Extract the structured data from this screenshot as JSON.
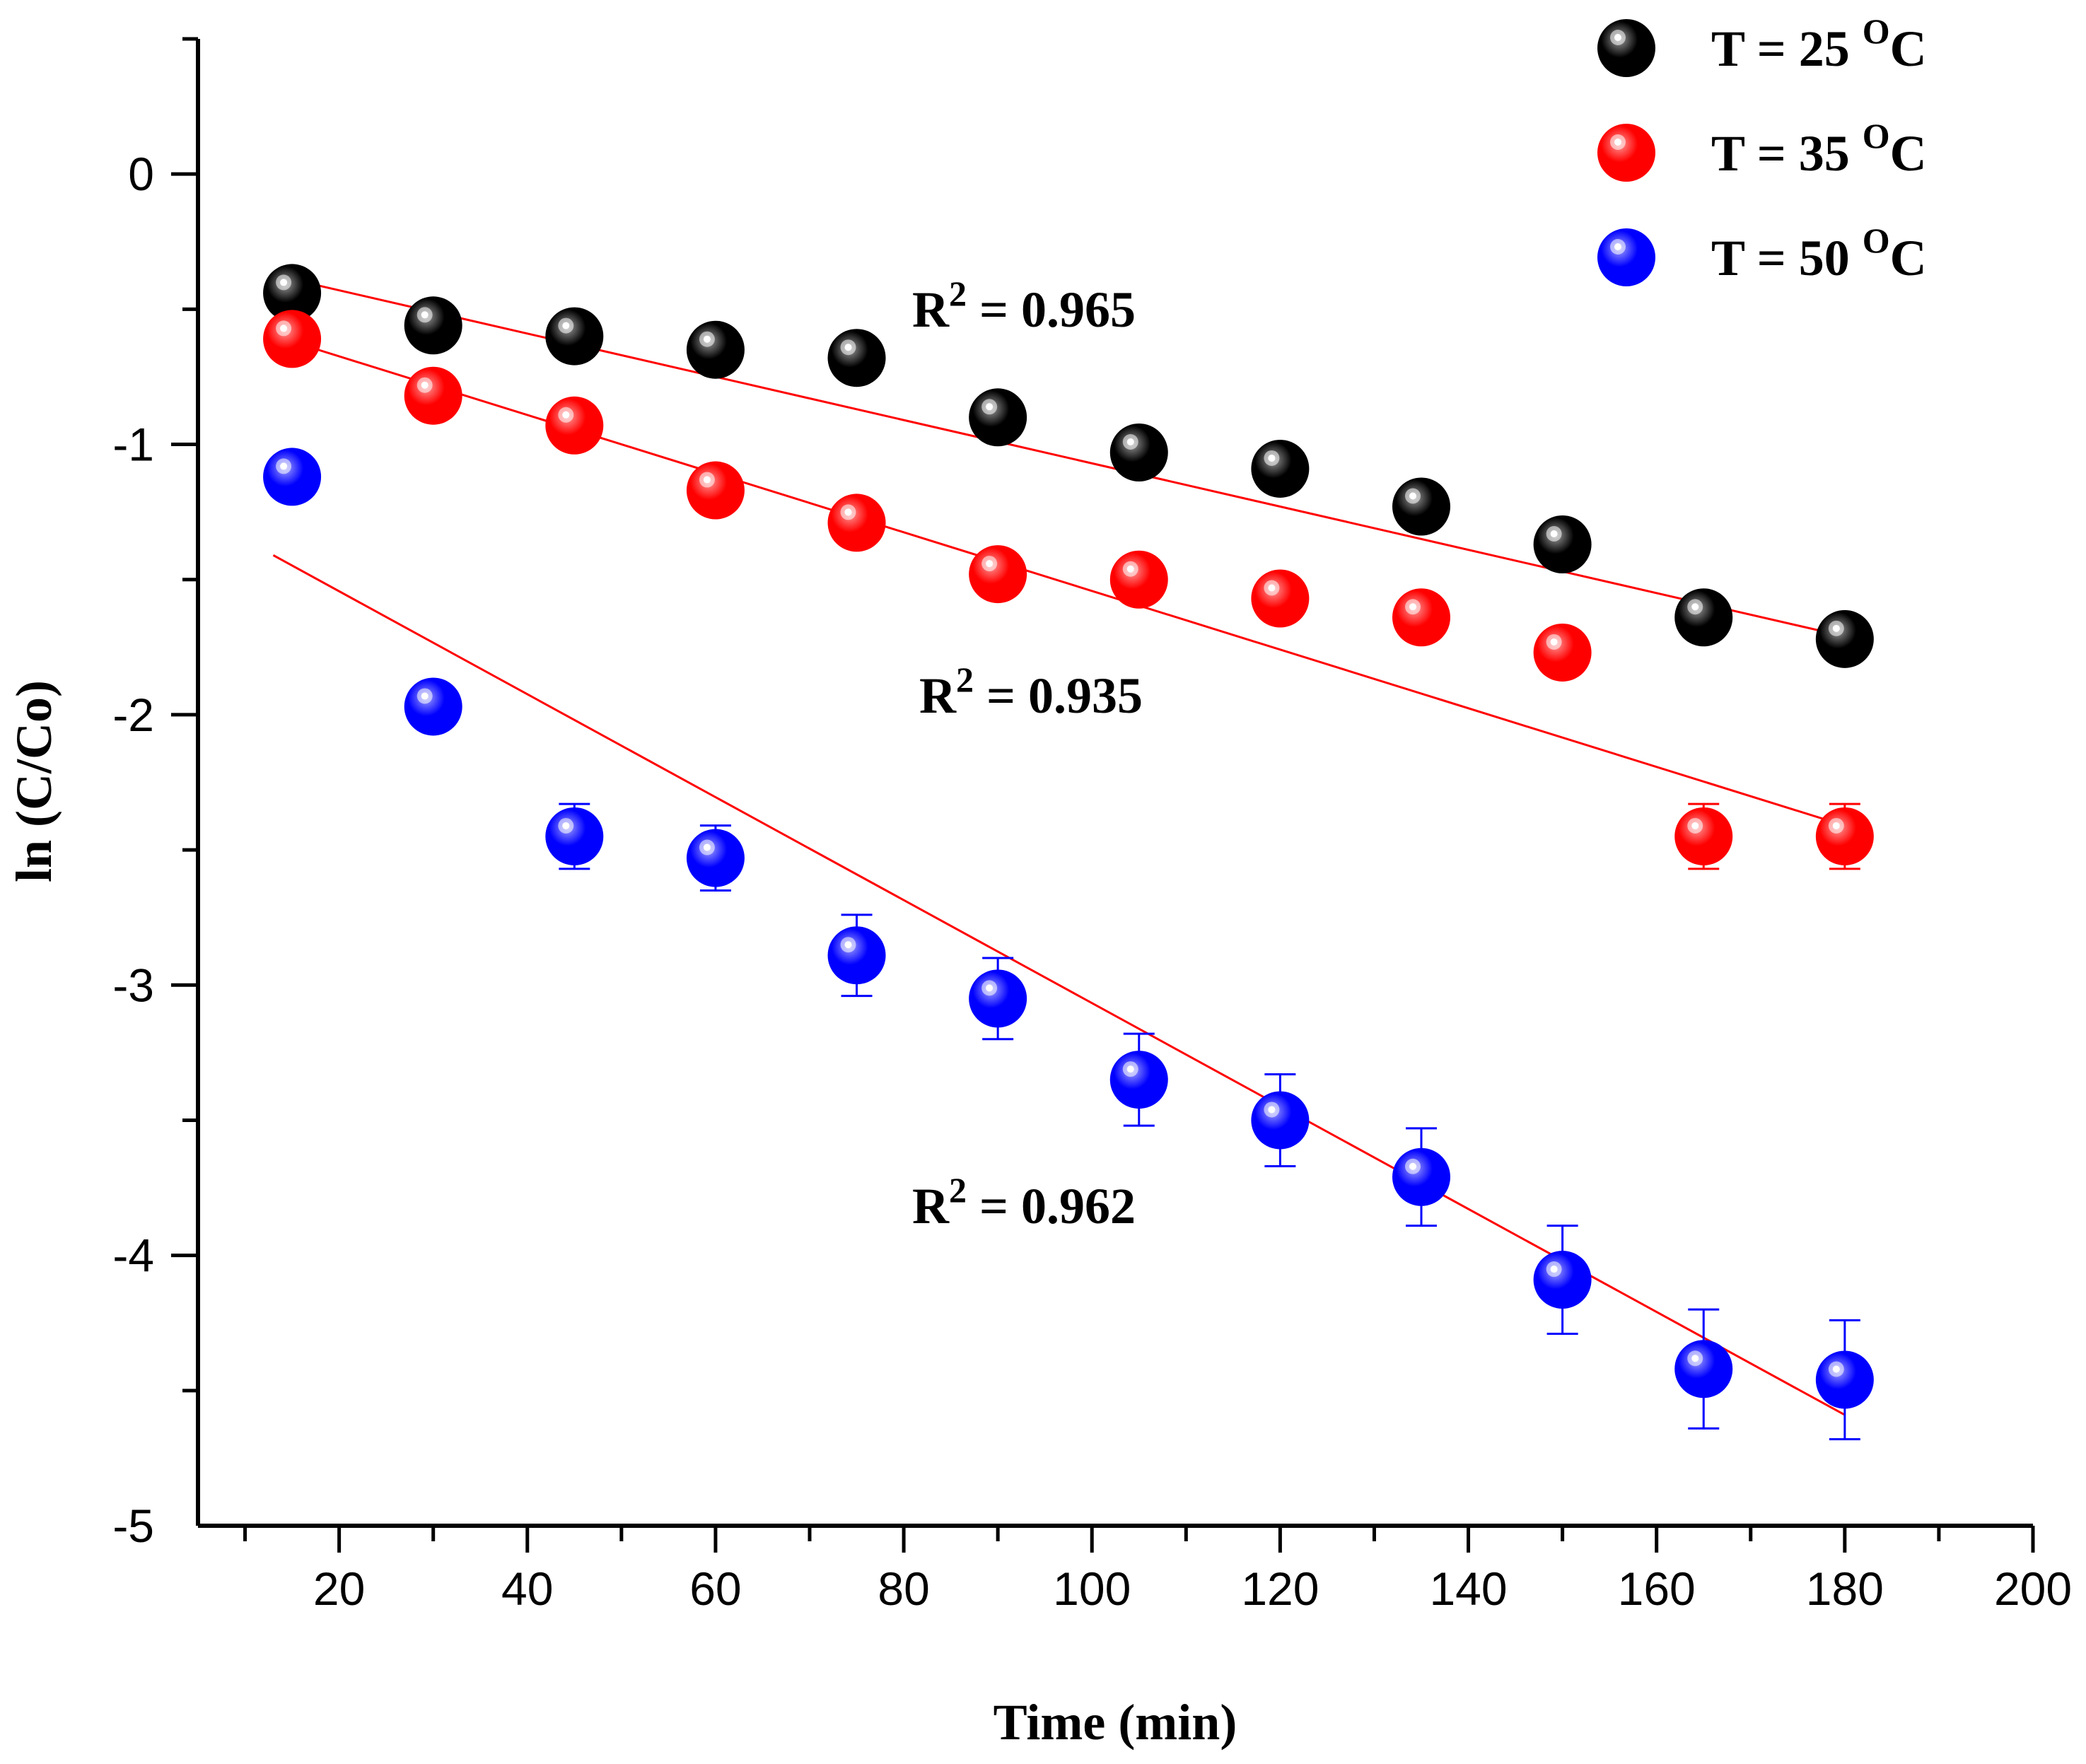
{
  "chart_data": {
    "type": "scatter",
    "xlabel": "Time (min)",
    "ylabel": "ln (C/Co)",
    "xlim": [
      5,
      200
    ],
    "ylim": [
      -5,
      0.5
    ],
    "x_ticks": [
      20,
      40,
      60,
      80,
      100,
      120,
      140,
      160,
      180,
      200
    ],
    "x_tick_labels": [
      "20",
      "40",
      "60",
      "80",
      "100",
      "120",
      "140",
      "160",
      "180",
      "200"
    ],
    "y_ticks": [
      0,
      -1,
      -2,
      -3,
      -4,
      -5
    ],
    "y_tick_labels": [
      "0",
      "-1",
      "-2",
      "-3",
      "-4",
      "-5"
    ],
    "x": [
      15,
      30,
      45,
      60,
      75,
      90,
      105,
      120,
      135,
      150,
      165,
      180
    ],
    "series": [
      {
        "name": "T = 25 oC",
        "label_main": "T = 25 ",
        "label_sup": "O",
        "label_tail": "C",
        "color": "#000000",
        "highlight": "#9a9a9a",
        "values": [
          -0.44,
          -0.56,
          -0.6,
          -0.65,
          -0.68,
          -0.9,
          -1.03,
          -1.09,
          -1.23,
          -1.37,
          -1.64,
          -1.72
        ],
        "errors": [
          0.02,
          0.02,
          0.02,
          0.02,
          0.02,
          0.02,
          0.02,
          0.02,
          0.02,
          0.02,
          0.02,
          0.02
        ],
        "fit": {
          "x0": 15,
          "y0": -0.39,
          "x1": 180,
          "y1": -1.71
        },
        "r2_label": "R",
        "r2_sup": "2",
        "r2_value": " = 0.965"
      },
      {
        "name": "T = 35 oC",
        "label_main": "T = 35 ",
        "label_sup": "O",
        "label_tail": "C",
        "color": "#ff0000",
        "highlight": "#ff9a9a",
        "values": [
          -0.61,
          -0.82,
          -0.93,
          -1.17,
          -1.29,
          -1.48,
          -1.5,
          -1.57,
          -1.64,
          -1.77,
          -2.45,
          -2.45
        ],
        "errors": [
          0.02,
          0.02,
          0.02,
          0.02,
          0.02,
          0.02,
          0.02,
          0.02,
          0.02,
          0.02,
          0.12,
          0.12
        ],
        "fit": {
          "x0": 15,
          "y0": -0.62,
          "x1": 180,
          "y1": -2.41
        },
        "r2_label": "R",
        "r2_sup": "2",
        "r2_value": " = 0.935"
      },
      {
        "name": "T = 50 oC",
        "label_main": "T = 50 ",
        "label_sup": "O",
        "label_tail": "C",
        "color": "#0000ff",
        "highlight": "#a0a0ff",
        "values": [
          -1.12,
          -1.97,
          -2.45,
          -2.53,
          -2.89,
          -3.05,
          -3.35,
          -3.5,
          -3.71,
          -4.09,
          -4.42,
          -4.46
        ],
        "errors": [
          0.03,
          0.03,
          0.12,
          0.12,
          0.15,
          0.15,
          0.17,
          0.17,
          0.18,
          0.2,
          0.22,
          0.22
        ],
        "fit": {
          "x0": 13,
          "y0": -1.41,
          "x1": 180,
          "y1": -4.59
        },
        "r2_label": "R",
        "r2_sup": "2",
        "r2_value": " = 0.962"
      }
    ]
  }
}
